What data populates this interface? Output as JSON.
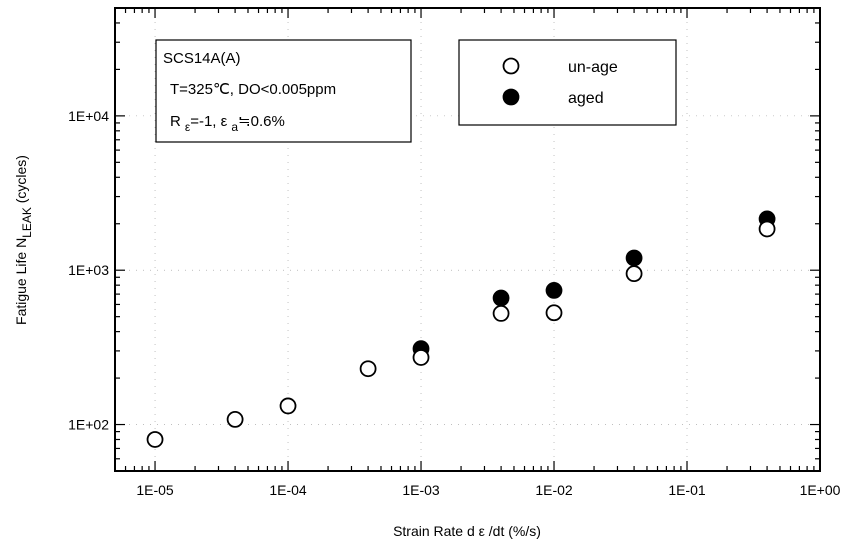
{
  "chart_data": {
    "type": "scatter",
    "xlabel": "Strain Rate  d ε /dt  (%/s)",
    "ylabel": "Fatigue Life N",
    "ylabel_sub": "LEAK",
    "ylabel_unit": " (cycles)",
    "x_scale": "log",
    "y_scale": "log",
    "xlim": [
      5e-06,
      1
    ],
    "ylim": [
      50,
      50000
    ],
    "x_ticks": [
      {
        "value": 1e-05,
        "label": "1E-05"
      },
      {
        "value": 0.0001,
        "label": "1E-04"
      },
      {
        "value": 0.001,
        "label": "1E-03"
      },
      {
        "value": 0.01,
        "label": "1E-02"
      },
      {
        "value": 0.1,
        "label": "1E-01"
      },
      {
        "value": 1,
        "label": "1E+00"
      }
    ],
    "y_ticks": [
      {
        "value": 100,
        "label": "1E+02"
      },
      {
        "value": 1000,
        "label": "1E+03"
      },
      {
        "value": 10000,
        "label": "1E+04"
      }
    ],
    "annotation": {
      "line1": "SCS14A(A)",
      "line2": "T=325℃, DO<0.005ppm",
      "line3_r": "R",
      "line3_eps": "ε",
      "line3_rest": "=-1,  ε",
      "line3_a": "a",
      "line3_tail": "≒0.6%"
    },
    "legend_position": "top-right",
    "series": [
      {
        "name": "un-age",
        "marker": "open-circle",
        "x": [
          1e-05,
          4e-05,
          0.0001,
          0.0004,
          0.001,
          0.004,
          0.01,
          0.04,
          0.4
        ],
        "y": [
          80,
          108,
          132,
          230,
          272,
          525,
          530,
          950,
          1850
        ]
      },
      {
        "name": "aged",
        "marker": "filled-circle",
        "x": [
          0.001,
          0.004,
          0.01,
          0.04,
          0.4
        ],
        "y": [
          310,
          660,
          740,
          1200,
          2150
        ]
      }
    ]
  }
}
